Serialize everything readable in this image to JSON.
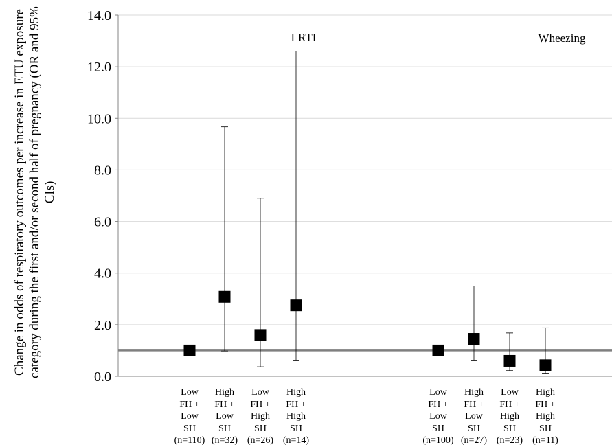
{
  "chart_data": {
    "type": "scatter",
    "ylabel": "Change in odds of respiratory outcomes per increase in ETU exposure category during the first and/or second half of pregnancy (OR and 95% CIs)",
    "ylim": [
      0,
      14
    ],
    "yticks": [
      "0.0",
      "2.0",
      "4.0",
      "6.0",
      "8.0",
      "10.0",
      "12.0",
      "14.0"
    ],
    "reference_line": 1.0,
    "grid": true,
    "panels": [
      {
        "label": "LRTI",
        "points": [
          {
            "category": "Low\nFH +\nLow\nSH\n(n=110)",
            "or": 1.0,
            "ci_low": null,
            "ci_high": null
          },
          {
            "category": "High\nFH +\nLow\nSH\n(n=32)",
            "or": 3.08,
            "ci_low": 0.98,
            "ci_high": 9.67
          },
          {
            "category": "Low\nFH +\nHigh\nSH\n(n=26)",
            "or": 1.6,
            "ci_low": 0.37,
            "ci_high": 6.9
          },
          {
            "category": "High\nFH +\nHigh\nSH\n(n=14)",
            "or": 2.75,
            "ci_low": 0.6,
            "ci_high": 12.6
          }
        ]
      },
      {
        "label": "Wheezing",
        "points": [
          {
            "category": "Low\nFH +\nLow\nSH\n(n=100)",
            "or": 1.0,
            "ci_low": null,
            "ci_high": null
          },
          {
            "category": "High\nFH +\nLow\nSH\n(n=27)",
            "or": 1.45,
            "ci_low": 0.6,
            "ci_high": 3.5
          },
          {
            "category": "Low\nFH +\nHigh\nSH\n(n=23)",
            "or": 0.6,
            "ci_low": 0.22,
            "ci_high": 1.68
          },
          {
            "category": "High\nFH +\nHigh\nSH\n(n=11)",
            "or": 0.43,
            "ci_low": 0.12,
            "ci_high": 1.88
          }
        ]
      }
    ]
  }
}
